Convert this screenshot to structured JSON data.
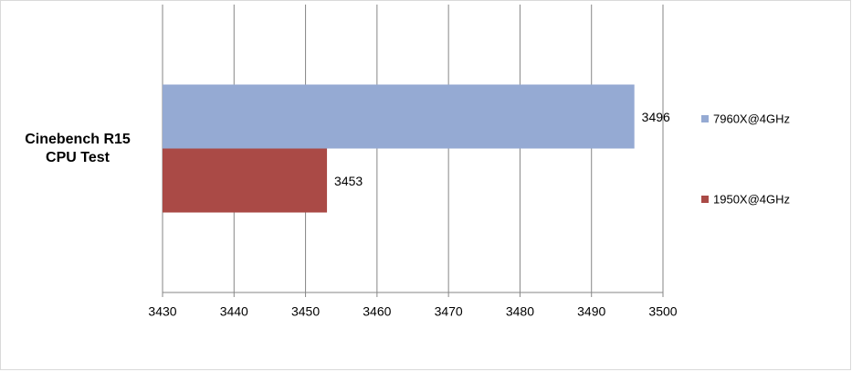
{
  "chart_data": {
    "type": "bar",
    "orientation": "horizontal",
    "categories": [
      "Cinebench R15 CPU Test"
    ],
    "series": [
      {
        "name": "7960X@4GHz",
        "color": "#95aad3",
        "values": [
          3496
        ]
      },
      {
        "name": "1950X@4GHz",
        "color": "#aa4a46",
        "values": [
          3453
        ]
      }
    ],
    "xlim": [
      3430,
      3500
    ],
    "xticks": [
      3430,
      3440,
      3450,
      3460,
      3470,
      3480,
      3490,
      3500
    ],
    "grid": true,
    "legend": "right"
  }
}
